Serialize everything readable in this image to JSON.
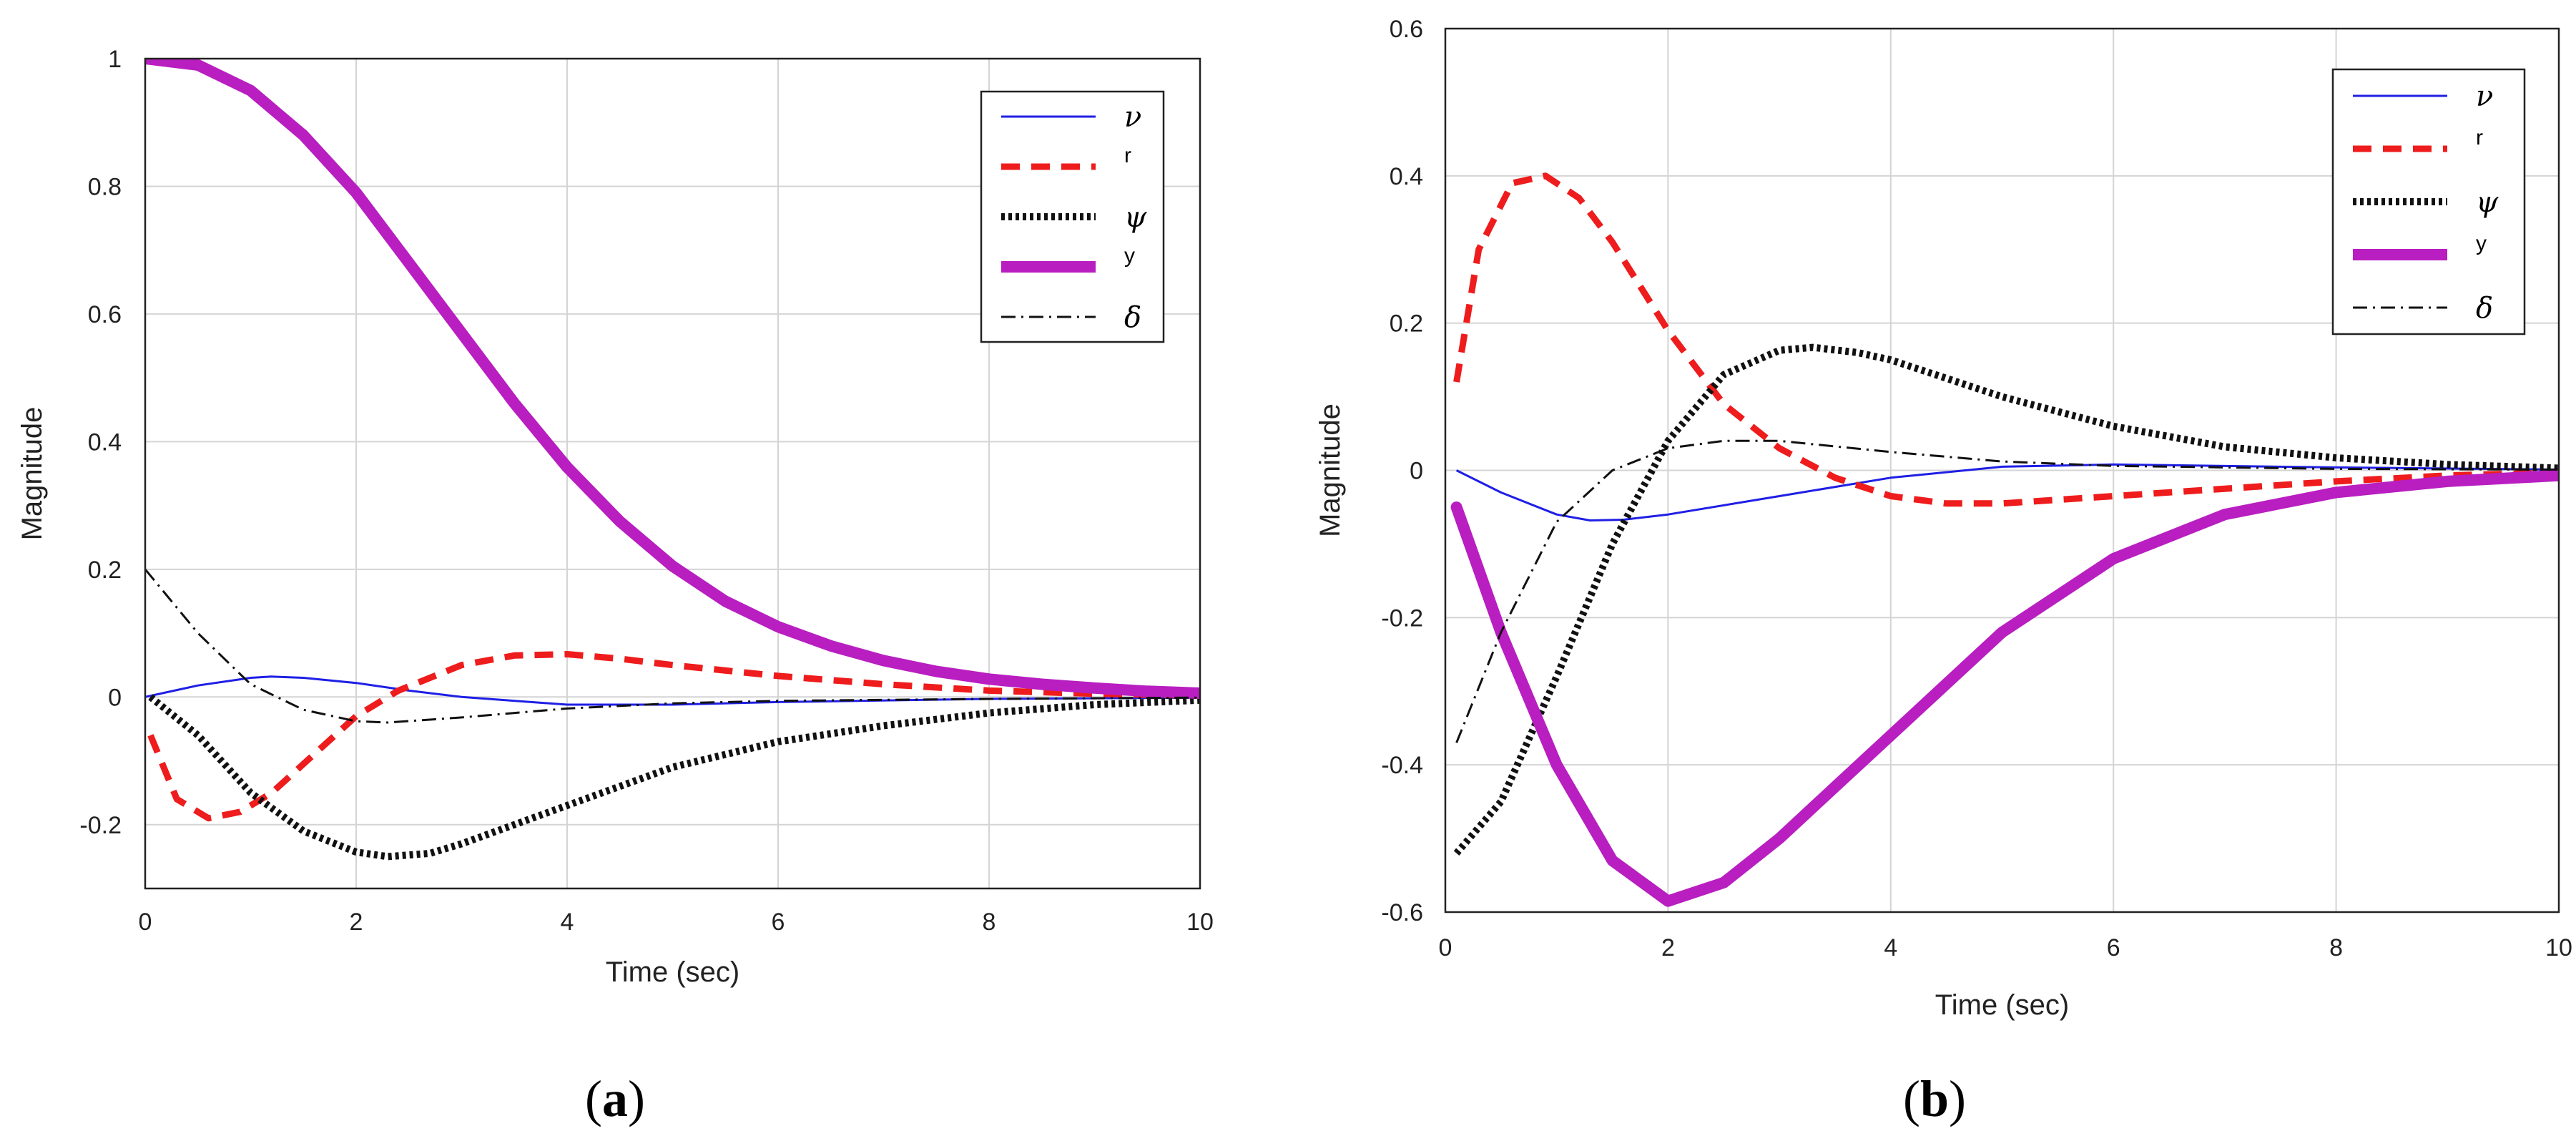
{
  "chart_data": [
    {
      "type": "line",
      "panel_label": "a",
      "xlabel": "Time (sec)",
      "ylabel": "Magnitude",
      "xlim": [
        0,
        10
      ],
      "ylim": [
        -0.3,
        1.0
      ],
      "xticks": [
        0,
        2,
        4,
        6,
        8,
        10
      ],
      "yticks": [
        -0.2,
        0,
        0.2,
        0.4,
        0.6,
        0.8,
        1
      ],
      "xtick_labels": [
        "0",
        "2",
        "4",
        "6",
        "8",
        "10"
      ],
      "ytick_labels": [
        "-0.2",
        "0",
        "0.2",
        "0.4",
        "0.6",
        "0.8",
        "1"
      ],
      "grid": true,
      "legend_position": "top-right",
      "series": [
        {
          "name": "ν",
          "legend_style": "greek",
          "color": "#1f1fe6",
          "style": "solid",
          "x": [
            0,
            0.5,
            1.0,
            1.2,
            1.5,
            2.0,
            2.5,
            3.0,
            4.0,
            5.0,
            6.0,
            8.0,
            10.0
          ],
          "y": [
            0,
            0.018,
            0.03,
            0.032,
            0.03,
            0.022,
            0.01,
            0.0,
            -0.012,
            -0.012,
            -0.008,
            -0.003,
            -0.001
          ]
        },
        {
          "name": "r",
          "legend_style": "small",
          "color": "#ee1c1c",
          "style": "dashed",
          "x": [
            0.05,
            0.3,
            0.6,
            0.9,
            1.2,
            1.6,
            2.0,
            2.4,
            3.0,
            3.5,
            4.0,
            4.5,
            5.0,
            6.0,
            7.0,
            8.0,
            9.0,
            10.0
          ],
          "y": [
            -0.06,
            -0.16,
            -0.19,
            -0.18,
            -0.15,
            -0.09,
            -0.03,
            0.01,
            0.05,
            0.065,
            0.067,
            0.06,
            0.05,
            0.033,
            0.02,
            0.01,
            0.005,
            0.002
          ]
        },
        {
          "name": "ψ",
          "legend_style": "greek",
          "color": "#111111",
          "style": "dotted",
          "x": [
            0.05,
            0.5,
            1.0,
            1.5,
            2.0,
            2.3,
            2.7,
            3.0,
            3.5,
            4.0,
            5.0,
            6.0,
            7.0,
            8.0,
            9.0,
            10.0
          ],
          "y": [
            0,
            -0.06,
            -0.15,
            -0.21,
            -0.243,
            -0.25,
            -0.245,
            -0.23,
            -0.2,
            -0.17,
            -0.11,
            -0.07,
            -0.045,
            -0.025,
            -0.012,
            -0.005
          ]
        },
        {
          "name": "y",
          "legend_style": "small",
          "color": "#b81ec0",
          "style": "thick",
          "x": [
            0,
            0.5,
            1.0,
            1.5,
            2.0,
            2.5,
            3.0,
            3.5,
            4.0,
            4.5,
            5.0,
            5.5,
            6.0,
            6.5,
            7.0,
            7.5,
            8.0,
            8.5,
            9.0,
            9.5,
            10.0
          ],
          "y": [
            1.0,
            0.99,
            0.95,
            0.88,
            0.79,
            0.68,
            0.57,
            0.46,
            0.36,
            0.275,
            0.205,
            0.15,
            0.11,
            0.08,
            0.057,
            0.04,
            0.028,
            0.02,
            0.014,
            0.009,
            0.006
          ]
        },
        {
          "name": "δ",
          "legend_style": "greek",
          "color": "#111111",
          "style": "dashdot",
          "x": [
            0,
            0.5,
            1.0,
            1.5,
            2.0,
            2.3,
            3.0,
            4.0,
            5.0,
            6.0,
            8.0,
            10.0
          ],
          "y": [
            0.2,
            0.1,
            0.02,
            -0.02,
            -0.038,
            -0.04,
            -0.032,
            -0.018,
            -0.01,
            -0.006,
            -0.003,
            -0.001
          ]
        }
      ]
    },
    {
      "type": "line",
      "panel_label": "b",
      "xlabel": "Time (sec)",
      "ylabel": "Magnitude",
      "xlim": [
        0,
        10
      ],
      "ylim": [
        -0.6,
        0.6
      ],
      "xticks": [
        0,
        2,
        4,
        6,
        8,
        10
      ],
      "yticks": [
        -0.6,
        -0.4,
        -0.2,
        0,
        0.2,
        0.4,
        0.6
      ],
      "xtick_labels": [
        "0",
        "2",
        "4",
        "6",
        "8",
        "10"
      ],
      "ytick_labels": [
        "-0.6",
        "-0.4",
        "-0.2",
        "0",
        "0.2",
        "0.4",
        "0.6"
      ],
      "grid": true,
      "legend_position": "top-right",
      "series": [
        {
          "name": "ν",
          "legend_style": "greek",
          "color": "#1f1fe6",
          "style": "solid",
          "x": [
            0.1,
            0.5,
            1.0,
            1.3,
            1.6,
            2.0,
            3.0,
            4.0,
            5.0,
            6.0,
            8.0,
            10.0
          ],
          "y": [
            0,
            -0.03,
            -0.06,
            -0.068,
            -0.067,
            -0.06,
            -0.035,
            -0.01,
            0.005,
            0.008,
            0.004,
            0.001
          ]
        },
        {
          "name": "r",
          "legend_style": "small",
          "color": "#ee1c1c",
          "style": "dashed",
          "x": [
            0.1,
            0.3,
            0.6,
            0.9,
            1.2,
            1.5,
            2.0,
            2.5,
            3.0,
            3.5,
            4.0,
            4.5,
            5.0,
            6.0,
            7.0,
            8.0,
            9.0,
            10.0
          ],
          "y": [
            0.12,
            0.3,
            0.39,
            0.4,
            0.37,
            0.31,
            0.19,
            0.09,
            0.03,
            -0.01,
            -0.035,
            -0.045,
            -0.045,
            -0.035,
            -0.025,
            -0.015,
            -0.007,
            -0.003
          ]
        },
        {
          "name": "ψ",
          "legend_style": "greek",
          "color": "#111111",
          "style": "dotted",
          "x": [
            0.1,
            0.5,
            1.0,
            1.5,
            2.0,
            2.5,
            3.0,
            3.3,
            3.7,
            4.0,
            5.0,
            6.0,
            7.0,
            8.0,
            9.0,
            10.0
          ],
          "y": [
            -0.52,
            -0.45,
            -0.28,
            -0.1,
            0.04,
            0.13,
            0.163,
            0.167,
            0.16,
            0.15,
            0.1,
            0.06,
            0.032,
            0.017,
            0.008,
            0.003
          ]
        },
        {
          "name": "y",
          "legend_style": "small",
          "color": "#b81ec0",
          "style": "thick",
          "x": [
            0.1,
            0.5,
            1.0,
            1.5,
            2.0,
            2.5,
            3.0,
            3.5,
            4.0,
            5.0,
            6.0,
            7.0,
            8.0,
            9.0,
            10.0
          ],
          "y": [
            -0.05,
            -0.22,
            -0.4,
            -0.53,
            -0.585,
            -0.56,
            -0.5,
            -0.43,
            -0.36,
            -0.22,
            -0.12,
            -0.06,
            -0.03,
            -0.015,
            -0.007
          ]
        },
        {
          "name": "δ",
          "legend_style": "greek",
          "color": "#111111",
          "style": "dashdot",
          "x": [
            0.1,
            0.5,
            1.0,
            1.5,
            2.0,
            2.5,
            3.0,
            4.0,
            5.0,
            6.0,
            8.0,
            10.0
          ],
          "y": [
            -0.37,
            -0.22,
            -0.07,
            0.0,
            0.03,
            0.04,
            0.04,
            0.025,
            0.012,
            0.006,
            0.002,
            0.001
          ]
        }
      ]
    }
  ]
}
